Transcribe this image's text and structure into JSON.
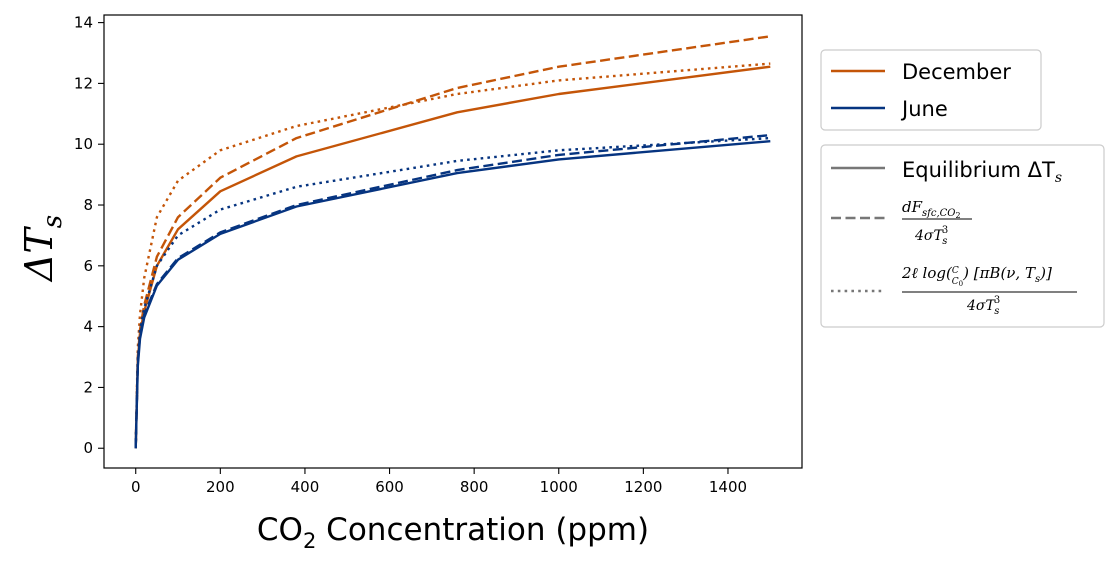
{
  "chart_data": {
    "type": "line",
    "xlabel_base": "CO",
    "xlabel_sub": "2",
    "xlabel_rest": " Concentration (ppm)",
    "ylabel_base": "ΔT",
    "ylabel_sub": "s",
    "xlim": [
      -75,
      1575
    ],
    "ylim": [
      -0.65,
      14.25
    ],
    "xticks": [
      0,
      200,
      400,
      600,
      800,
      1000,
      1200,
      1400
    ],
    "yticks": [
      0,
      2,
      4,
      6,
      8,
      10,
      12,
      14
    ],
    "x": [
      0,
      5,
      10,
      20,
      50,
      100,
      200,
      380,
      760,
      1000,
      1500
    ],
    "colors": {
      "December": "#c45508",
      "June": "#063480",
      "style_key": "#777777"
    },
    "series": [
      {
        "name": "December",
        "style": "solid",
        "values": [
          0.0,
          2.9,
          3.8,
          4.5,
          6.0,
          7.2,
          8.45,
          9.6,
          11.05,
          11.65,
          12.55
        ]
      },
      {
        "name": "December",
        "style": "dashed",
        "values": [
          0.0,
          3.0,
          3.9,
          4.7,
          6.3,
          7.6,
          8.9,
          10.2,
          11.85,
          12.55,
          13.55
        ]
      },
      {
        "name": "December",
        "style": "dotted",
        "values": [
          0.0,
          3.3,
          4.4,
          5.6,
          7.6,
          8.8,
          9.8,
          10.6,
          11.65,
          12.1,
          12.65
        ]
      },
      {
        "name": "June",
        "style": "solid",
        "values": [
          0.0,
          2.7,
          3.6,
          4.3,
          5.35,
          6.2,
          7.05,
          7.95,
          9.05,
          9.5,
          10.1
        ]
      },
      {
        "name": "June",
        "style": "dashed",
        "values": [
          0.0,
          2.8,
          3.7,
          4.4,
          5.4,
          6.25,
          7.1,
          8.0,
          9.15,
          9.65,
          10.3
        ]
      },
      {
        "name": "June",
        "style": "dotted",
        "values": [
          0.0,
          2.9,
          3.9,
          4.6,
          6.0,
          7.0,
          7.85,
          8.6,
          9.45,
          9.8,
          10.2
        ]
      }
    ],
    "legend_placement": "outside-right",
    "legend_colors": [
      {
        "label": "December",
        "color": "#c45508"
      },
      {
        "label": "June",
        "color": "#063480"
      }
    ],
    "legend_styles": {
      "equilibrium_text": "Equilibrium ΔT",
      "equilibrium_sub": "s",
      "dash_num_d": "dF",
      "dash_num_sub": "sfc,CO",
      "dash_num_sub2": "2",
      "dash_den": "4σT",
      "dash_den_sub": "s",
      "dash_den_sup": "3",
      "dot_num_a": "2ℓ log(",
      "dot_frac_c": "C",
      "dot_frac_c0": "C",
      "dot_frac_c0_sub": "0",
      "dot_num_b": ") [πB(ν, T",
      "dot_num_b_sub": "s",
      "dot_num_c": ")]",
      "dot_den": "4σT",
      "dot_den_sub": "s",
      "dot_den_sup": "3"
    }
  }
}
